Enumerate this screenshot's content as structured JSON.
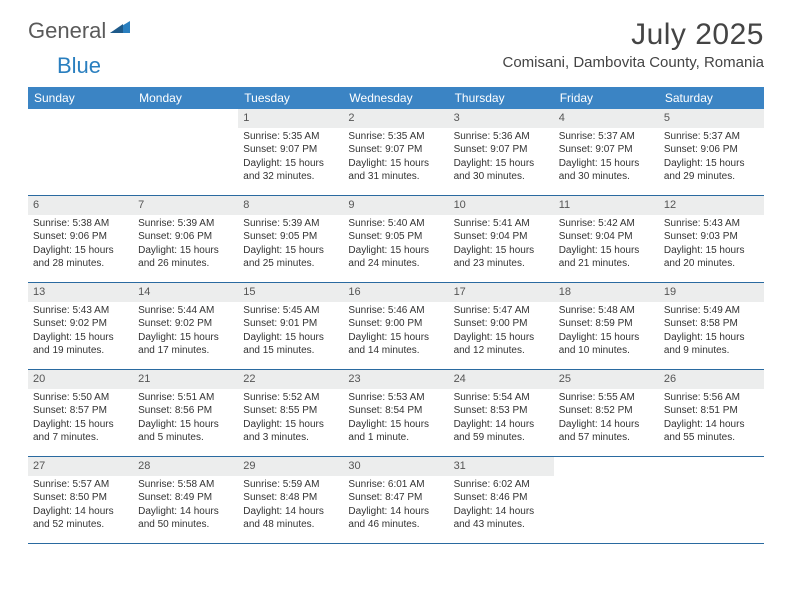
{
  "logo": {
    "part1": "General",
    "part2": "Blue"
  },
  "title": "July 2025",
  "location": "Comisani, Dambovita County, Romania",
  "colors": {
    "header_bg": "#3b84c4",
    "header_text": "#ffffff",
    "row_divider": "#2a6aa0",
    "daynum_bg": "#eceded",
    "logo_gray": "#5a5a5a",
    "logo_blue": "#2a7fbf",
    "text": "#333333",
    "page_bg": "#ffffff"
  },
  "typography": {
    "title_fontsize": 30,
    "location_fontsize": 15,
    "weekday_fontsize": 12,
    "daynum_fontsize": 11,
    "cell_fontsize": 10,
    "logo_fontsize": 22
  },
  "weekdays": [
    "Sunday",
    "Monday",
    "Tuesday",
    "Wednesday",
    "Thursday",
    "Friday",
    "Saturday"
  ],
  "weeks": [
    [
      null,
      null,
      {
        "n": "1",
        "sunrise": "Sunrise: 5:35 AM",
        "sunset": "Sunset: 9:07 PM",
        "day1": "Daylight: 15 hours",
        "day2": "and 32 minutes."
      },
      {
        "n": "2",
        "sunrise": "Sunrise: 5:35 AM",
        "sunset": "Sunset: 9:07 PM",
        "day1": "Daylight: 15 hours",
        "day2": "and 31 minutes."
      },
      {
        "n": "3",
        "sunrise": "Sunrise: 5:36 AM",
        "sunset": "Sunset: 9:07 PM",
        "day1": "Daylight: 15 hours",
        "day2": "and 30 minutes."
      },
      {
        "n": "4",
        "sunrise": "Sunrise: 5:37 AM",
        "sunset": "Sunset: 9:07 PM",
        "day1": "Daylight: 15 hours",
        "day2": "and 30 minutes."
      },
      {
        "n": "5",
        "sunrise": "Sunrise: 5:37 AM",
        "sunset": "Sunset: 9:06 PM",
        "day1": "Daylight: 15 hours",
        "day2": "and 29 minutes."
      }
    ],
    [
      {
        "n": "6",
        "sunrise": "Sunrise: 5:38 AM",
        "sunset": "Sunset: 9:06 PM",
        "day1": "Daylight: 15 hours",
        "day2": "and 28 minutes."
      },
      {
        "n": "7",
        "sunrise": "Sunrise: 5:39 AM",
        "sunset": "Sunset: 9:06 PM",
        "day1": "Daylight: 15 hours",
        "day2": "and 26 minutes."
      },
      {
        "n": "8",
        "sunrise": "Sunrise: 5:39 AM",
        "sunset": "Sunset: 9:05 PM",
        "day1": "Daylight: 15 hours",
        "day2": "and 25 minutes."
      },
      {
        "n": "9",
        "sunrise": "Sunrise: 5:40 AM",
        "sunset": "Sunset: 9:05 PM",
        "day1": "Daylight: 15 hours",
        "day2": "and 24 minutes."
      },
      {
        "n": "10",
        "sunrise": "Sunrise: 5:41 AM",
        "sunset": "Sunset: 9:04 PM",
        "day1": "Daylight: 15 hours",
        "day2": "and 23 minutes."
      },
      {
        "n": "11",
        "sunrise": "Sunrise: 5:42 AM",
        "sunset": "Sunset: 9:04 PM",
        "day1": "Daylight: 15 hours",
        "day2": "and 21 minutes."
      },
      {
        "n": "12",
        "sunrise": "Sunrise: 5:43 AM",
        "sunset": "Sunset: 9:03 PM",
        "day1": "Daylight: 15 hours",
        "day2": "and 20 minutes."
      }
    ],
    [
      {
        "n": "13",
        "sunrise": "Sunrise: 5:43 AM",
        "sunset": "Sunset: 9:02 PM",
        "day1": "Daylight: 15 hours",
        "day2": "and 19 minutes."
      },
      {
        "n": "14",
        "sunrise": "Sunrise: 5:44 AM",
        "sunset": "Sunset: 9:02 PM",
        "day1": "Daylight: 15 hours",
        "day2": "and 17 minutes."
      },
      {
        "n": "15",
        "sunrise": "Sunrise: 5:45 AM",
        "sunset": "Sunset: 9:01 PM",
        "day1": "Daylight: 15 hours",
        "day2": "and 15 minutes."
      },
      {
        "n": "16",
        "sunrise": "Sunrise: 5:46 AM",
        "sunset": "Sunset: 9:00 PM",
        "day1": "Daylight: 15 hours",
        "day2": "and 14 minutes."
      },
      {
        "n": "17",
        "sunrise": "Sunrise: 5:47 AM",
        "sunset": "Sunset: 9:00 PM",
        "day1": "Daylight: 15 hours",
        "day2": "and 12 minutes."
      },
      {
        "n": "18",
        "sunrise": "Sunrise: 5:48 AM",
        "sunset": "Sunset: 8:59 PM",
        "day1": "Daylight: 15 hours",
        "day2": "and 10 minutes."
      },
      {
        "n": "19",
        "sunrise": "Sunrise: 5:49 AM",
        "sunset": "Sunset: 8:58 PM",
        "day1": "Daylight: 15 hours",
        "day2": "and 9 minutes."
      }
    ],
    [
      {
        "n": "20",
        "sunrise": "Sunrise: 5:50 AM",
        "sunset": "Sunset: 8:57 PM",
        "day1": "Daylight: 15 hours",
        "day2": "and 7 minutes."
      },
      {
        "n": "21",
        "sunrise": "Sunrise: 5:51 AM",
        "sunset": "Sunset: 8:56 PM",
        "day1": "Daylight: 15 hours",
        "day2": "and 5 minutes."
      },
      {
        "n": "22",
        "sunrise": "Sunrise: 5:52 AM",
        "sunset": "Sunset: 8:55 PM",
        "day1": "Daylight: 15 hours",
        "day2": "and 3 minutes."
      },
      {
        "n": "23",
        "sunrise": "Sunrise: 5:53 AM",
        "sunset": "Sunset: 8:54 PM",
        "day1": "Daylight: 15 hours",
        "day2": "and 1 minute."
      },
      {
        "n": "24",
        "sunrise": "Sunrise: 5:54 AM",
        "sunset": "Sunset: 8:53 PM",
        "day1": "Daylight: 14 hours",
        "day2": "and 59 minutes."
      },
      {
        "n": "25",
        "sunrise": "Sunrise: 5:55 AM",
        "sunset": "Sunset: 8:52 PM",
        "day1": "Daylight: 14 hours",
        "day2": "and 57 minutes."
      },
      {
        "n": "26",
        "sunrise": "Sunrise: 5:56 AM",
        "sunset": "Sunset: 8:51 PM",
        "day1": "Daylight: 14 hours",
        "day2": "and 55 minutes."
      }
    ],
    [
      {
        "n": "27",
        "sunrise": "Sunrise: 5:57 AM",
        "sunset": "Sunset: 8:50 PM",
        "day1": "Daylight: 14 hours",
        "day2": "and 52 minutes."
      },
      {
        "n": "28",
        "sunrise": "Sunrise: 5:58 AM",
        "sunset": "Sunset: 8:49 PM",
        "day1": "Daylight: 14 hours",
        "day2": "and 50 minutes."
      },
      {
        "n": "29",
        "sunrise": "Sunrise: 5:59 AM",
        "sunset": "Sunset: 8:48 PM",
        "day1": "Daylight: 14 hours",
        "day2": "and 48 minutes."
      },
      {
        "n": "30",
        "sunrise": "Sunrise: 6:01 AM",
        "sunset": "Sunset: 8:47 PM",
        "day1": "Daylight: 14 hours",
        "day2": "and 46 minutes."
      },
      {
        "n": "31",
        "sunrise": "Sunrise: 6:02 AM",
        "sunset": "Sunset: 8:46 PM",
        "day1": "Daylight: 14 hours",
        "day2": "and 43 minutes."
      },
      null,
      null
    ]
  ]
}
